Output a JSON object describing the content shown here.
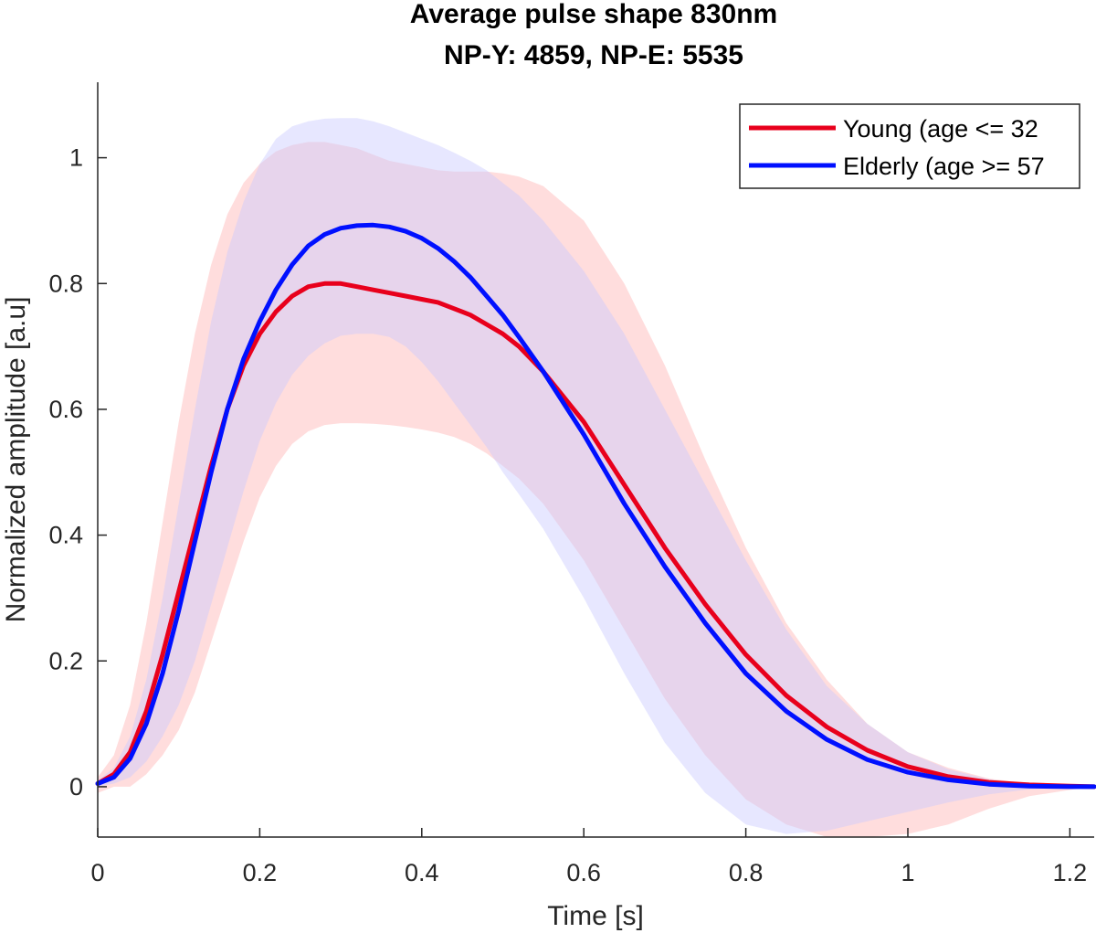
{
  "chart_data": {
    "type": "line",
    "title": "Average pulse shape 830nm",
    "subtitle": "NP-Y: 4859, NP-E: 5535",
    "xlabel": "Time [s]",
    "ylabel": "Normalized amplitude [a.u]",
    "xlim": [
      0,
      1.23
    ],
    "ylim": [
      -0.08,
      1.12
    ],
    "xticks": [
      0,
      0.2,
      0.4,
      0.6,
      0.8,
      1,
      1.2
    ],
    "xtick_labels": [
      "0",
      "0.2",
      "0.4",
      "0.6",
      "0.8",
      "1",
      "1.2"
    ],
    "yticks": [
      0,
      0.2,
      0.4,
      0.6,
      0.8,
      1
    ],
    "ytick_labels": [
      "0",
      "0.2",
      "0.4",
      "0.6",
      "0.8",
      "1"
    ],
    "grid": false,
    "legend_position": "top-right",
    "x": [
      0,
      0.02,
      0.04,
      0.06,
      0.08,
      0.1,
      0.12,
      0.14,
      0.16,
      0.18,
      0.2,
      0.22,
      0.24,
      0.26,
      0.28,
      0.3,
      0.32,
      0.34,
      0.36,
      0.38,
      0.4,
      0.42,
      0.44,
      0.46,
      0.48,
      0.5,
      0.52,
      0.55,
      0.6,
      0.65,
      0.7,
      0.75,
      0.8,
      0.85,
      0.9,
      0.95,
      1.0,
      1.05,
      1.1,
      1.15,
      1.2,
      1.23
    ],
    "series": [
      {
        "name": "Young (age <= 32",
        "color": "#e8001c",
        "band_color": "#ffbcbc",
        "values": [
          0.005,
          0.02,
          0.055,
          0.12,
          0.21,
          0.31,
          0.41,
          0.51,
          0.6,
          0.67,
          0.72,
          0.755,
          0.78,
          0.795,
          0.8,
          0.8,
          0.795,
          0.79,
          0.785,
          0.78,
          0.775,
          0.77,
          0.76,
          0.75,
          0.735,
          0.72,
          0.7,
          0.66,
          0.58,
          0.48,
          0.38,
          0.29,
          0.21,
          0.145,
          0.095,
          0.058,
          0.032,
          0.016,
          0.007,
          0.003,
          0.001,
          0.0
        ],
        "upper": [
          0.015,
          0.05,
          0.13,
          0.26,
          0.42,
          0.58,
          0.72,
          0.83,
          0.91,
          0.96,
          0.99,
          1.01,
          1.02,
          1.025,
          1.025,
          1.02,
          1.015,
          1.005,
          0.995,
          0.99,
          0.985,
          0.98,
          0.978,
          0.978,
          0.978,
          0.975,
          0.97,
          0.955,
          0.9,
          0.8,
          0.67,
          0.52,
          0.38,
          0.26,
          0.17,
          0.1,
          0.055,
          0.03,
          0.013,
          0.005,
          0.002,
          0.0
        ],
        "lower": [
          -0.01,
          0.0,
          0.0,
          0.02,
          0.05,
          0.09,
          0.15,
          0.23,
          0.31,
          0.39,
          0.46,
          0.51,
          0.545,
          0.565,
          0.575,
          0.578,
          0.578,
          0.577,
          0.575,
          0.572,
          0.568,
          0.563,
          0.556,
          0.545,
          0.53,
          0.51,
          0.49,
          0.45,
          0.36,
          0.25,
          0.14,
          0.05,
          -0.02,
          -0.06,
          -0.08,
          -0.08,
          -0.075,
          -0.06,
          -0.035,
          -0.015,
          -0.005,
          0.0
        ]
      },
      {
        "name": "Elderly (age >= 57",
        "color": "#0010ff",
        "band_color": "#c9c9ff",
        "values": [
          0.005,
          0.015,
          0.045,
          0.1,
          0.18,
          0.28,
          0.39,
          0.5,
          0.6,
          0.68,
          0.74,
          0.79,
          0.83,
          0.86,
          0.878,
          0.888,
          0.892,
          0.893,
          0.89,
          0.883,
          0.872,
          0.856,
          0.835,
          0.81,
          0.78,
          0.75,
          0.715,
          0.66,
          0.56,
          0.45,
          0.35,
          0.26,
          0.18,
          0.12,
          0.075,
          0.043,
          0.023,
          0.011,
          0.004,
          0.001,
          0.0,
          0.0
        ],
        "upper": [
          0.01,
          0.03,
          0.08,
          0.17,
          0.3,
          0.45,
          0.6,
          0.74,
          0.85,
          0.93,
          0.99,
          1.03,
          1.05,
          1.058,
          1.062,
          1.063,
          1.063,
          1.058,
          1.05,
          1.04,
          1.03,
          1.02,
          1.008,
          0.995,
          0.98,
          0.96,
          0.94,
          0.9,
          0.82,
          0.72,
          0.6,
          0.48,
          0.36,
          0.25,
          0.16,
          0.1,
          0.055,
          0.028,
          0.012,
          0.004,
          0.001,
          0.0
        ],
        "lower": [
          0.0,
          0.005,
          0.015,
          0.04,
          0.08,
          0.13,
          0.2,
          0.29,
          0.38,
          0.47,
          0.55,
          0.61,
          0.655,
          0.685,
          0.705,
          0.717,
          0.72,
          0.72,
          0.715,
          0.7,
          0.675,
          0.645,
          0.61,
          0.575,
          0.54,
          0.5,
          0.465,
          0.41,
          0.3,
          0.18,
          0.07,
          -0.01,
          -0.06,
          -0.075,
          -0.07,
          -0.055,
          -0.04,
          -0.025,
          -0.012,
          -0.004,
          -0.001,
          0.0
        ]
      }
    ]
  }
}
